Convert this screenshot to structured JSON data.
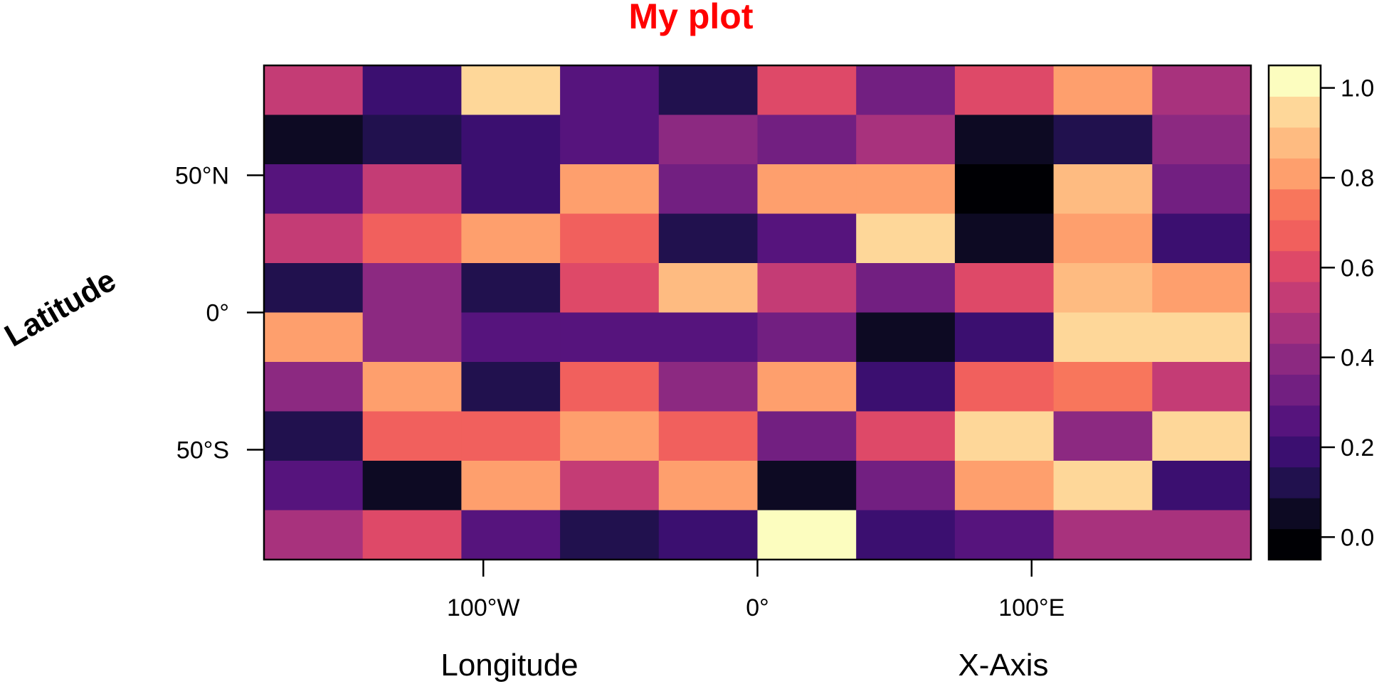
{
  "chart_data": {
    "type": "heatmap",
    "title": "My plot",
    "xlabel": "Longitude",
    "xlabel2": "X-Axis",
    "ylabel": "Latitude",
    "x_ticks": [
      {
        "value": -100,
        "label": "100°W"
      },
      {
        "value": 0,
        "label": "0°"
      },
      {
        "value": 100,
        "label": "100°E"
      }
    ],
    "y_ticks": [
      {
        "value": 50,
        "label": "50°N"
      },
      {
        "value": 0,
        "label": "0°"
      },
      {
        "value": -50,
        "label": "50°S"
      }
    ],
    "xlim": [
      -180,
      180
    ],
    "ylim": [
      -90,
      90
    ],
    "colorbar": {
      "zlim": [
        -0.05,
        1.05
      ],
      "ticks": [
        {
          "value": 0.0,
          "label": "0.0"
        },
        {
          "value": 0.2,
          "label": "0.2"
        },
        {
          "value": 0.4,
          "label": "0.4"
        },
        {
          "value": 0.6,
          "label": "0.6"
        },
        {
          "value": 0.8,
          "label": "0.8"
        },
        {
          "value": 1.0,
          "label": "1.0"
        }
      ],
      "colors": [
        "#000004",
        "#0d0a23",
        "#21114e",
        "#3b0f70",
        "#56147d",
        "#721f81",
        "#8c2981",
        "#a8327d",
        "#c43c75",
        "#de4968",
        "#f1605d",
        "#f8765c",
        "#fe9f6d",
        "#febb81",
        "#fed799",
        "#fcfdbf"
      ]
    },
    "rows": [
      [
        0.55,
        0.2,
        0.97,
        0.26,
        0.12,
        0.63,
        0.32,
        0.58,
        0.83,
        0.45
      ],
      [
        0.05,
        0.1,
        0.22,
        0.27,
        0.42,
        0.35,
        0.45,
        0.05,
        0.12,
        0.4
      ],
      [
        0.27,
        0.56,
        0.2,
        0.78,
        0.34,
        0.78,
        0.78,
        0.0,
        0.91,
        0.32
      ],
      [
        0.56,
        0.68,
        0.78,
        0.7,
        0.12,
        0.27,
        0.97,
        0.05,
        0.82,
        0.2
      ],
      [
        0.12,
        0.41,
        0.12,
        0.57,
        0.91,
        0.55,
        0.33,
        0.57,
        0.91,
        0.82
      ],
      [
        0.84,
        0.42,
        0.26,
        0.26,
        0.26,
        0.35,
        0.05,
        0.2,
        0.97,
        0.92
      ],
      [
        0.41,
        0.84,
        0.12,
        0.7,
        0.4,
        0.78,
        0.2,
        0.7,
        0.76,
        0.56
      ],
      [
        0.12,
        0.7,
        0.7,
        0.84,
        0.7,
        0.35,
        0.63,
        0.97,
        0.43,
        0.97
      ],
      [
        0.26,
        0.05,
        0.82,
        0.55,
        0.78,
        0.05,
        0.35,
        0.83,
        0.97,
        0.2
      ],
      [
        0.45,
        0.62,
        0.26,
        0.12,
        0.2,
        1.0,
        0.2,
        0.26,
        0.45,
        0.45
      ]
    ]
  }
}
